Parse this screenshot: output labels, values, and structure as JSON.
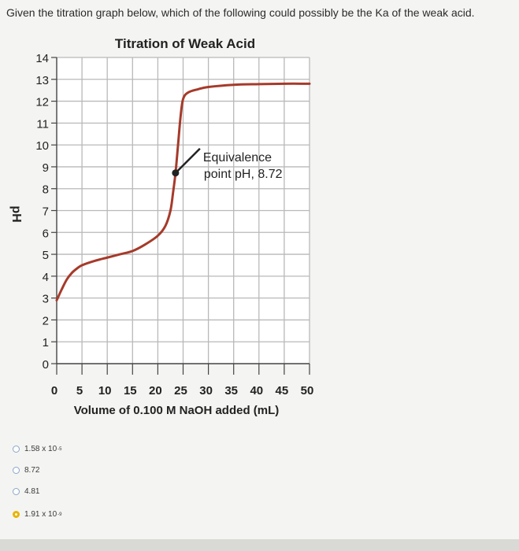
{
  "question": "Given the titration graph below, which of the following could possibly be the Ka of the weak acid.",
  "answers": [
    {
      "text": "1.58 x 10",
      "sup": "-5",
      "selected": false
    },
    {
      "text": "8.72",
      "sup": "",
      "selected": false
    },
    {
      "text": "4.81",
      "sup": "",
      "selected": false
    },
    {
      "text": "1.91 x 10",
      "sup": "-9",
      "selected": true
    }
  ],
  "chart_data": {
    "type": "line",
    "title": "Titration of Weak Acid",
    "xlabel": "Volume of 0.100 M NaOH added (mL)",
    "ylabel": "pH",
    "xlim": [
      0,
      50
    ],
    "ylim": [
      0,
      14
    ],
    "x_ticks": [
      "0",
      "5",
      "10",
      "15",
      "20",
      "25",
      "30",
      "35",
      "40",
      "45",
      "50"
    ],
    "y_ticks": [
      "0",
      "1",
      "2",
      "3",
      "4",
      "5",
      "6",
      "7",
      "8",
      "9",
      "10",
      "11",
      "12",
      "13",
      "14"
    ],
    "grid": true,
    "series": [
      {
        "color": "#a63a2a",
        "points": [
          [
            0,
            2.9
          ],
          [
            1,
            3.4
          ],
          [
            2,
            3.85
          ],
          [
            3,
            4.15
          ],
          [
            4,
            4.35
          ],
          [
            5,
            4.5
          ],
          [
            7.5,
            4.7
          ],
          [
            10,
            4.85
          ],
          [
            12.5,
            5.0
          ],
          [
            15,
            5.15
          ],
          [
            17.5,
            5.45
          ],
          [
            20,
            5.85
          ],
          [
            21.5,
            6.3
          ],
          [
            22.5,
            7.0
          ],
          [
            23,
            7.8
          ],
          [
            23.5,
            8.72
          ],
          [
            24,
            10.0
          ],
          [
            24.5,
            11.3
          ],
          [
            25,
            12.1
          ],
          [
            26,
            12.4
          ],
          [
            28,
            12.55
          ],
          [
            30,
            12.65
          ],
          [
            35,
            12.75
          ],
          [
            40,
            12.78
          ],
          [
            45,
            12.8
          ],
          [
            50,
            12.8
          ]
        ]
      }
    ],
    "annotation": {
      "text_line1": "Equivalence",
      "text_line2": "point pH, 8.72",
      "point": [
        23.5,
        8.72
      ]
    }
  }
}
